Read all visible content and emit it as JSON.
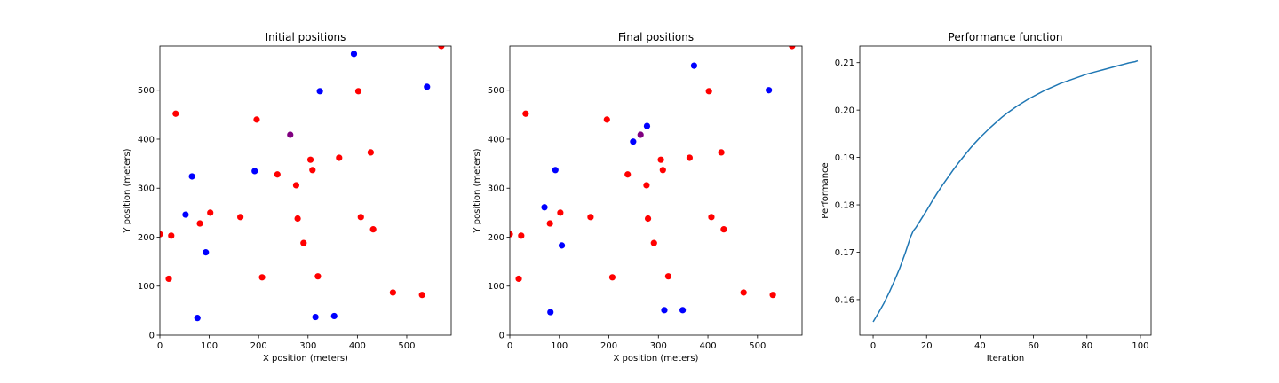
{
  "chart_data": [
    {
      "type": "scatter",
      "title": "Initial positions",
      "xlabel": "X position (meters)",
      "ylabel": "Y position (meters)",
      "xlim": [
        0,
        590
      ],
      "ylim": [
        0,
        590
      ],
      "xticks": [
        0,
        100,
        200,
        300,
        400,
        500
      ],
      "yticks": [
        0,
        100,
        200,
        300,
        400,
        500
      ],
      "grid": false,
      "series": [
        {
          "color": "#ff0000",
          "points": [
            [
              570,
              590
            ],
            [
              402,
              498
            ],
            [
              32,
              452
            ],
            [
              196,
              440
            ],
            [
              427,
              373
            ],
            [
              363,
              362
            ],
            [
              305,
              358
            ],
            [
              309,
              337
            ],
            [
              238,
              328
            ],
            [
              276,
              306
            ],
            [
              102,
              250
            ],
            [
              163,
              241
            ],
            [
              407,
              241
            ],
            [
              279,
              238
            ],
            [
              81,
              228
            ],
            [
              432,
              216
            ],
            [
              0,
              206
            ],
            [
              23,
              203
            ],
            [
              291,
              188
            ],
            [
              320,
              120
            ],
            [
              207,
              118
            ],
            [
              18,
              115
            ],
            [
              472,
              87
            ],
            [
              531,
              82
            ]
          ]
        },
        {
          "color": "#0000ff",
          "points": [
            [
              393,
              574
            ],
            [
              324,
              498
            ],
            [
              541,
              507
            ],
            [
              192,
              335
            ],
            [
              65,
              324
            ],
            [
              52,
              246
            ],
            [
              93,
              169
            ],
            [
              76,
              35
            ],
            [
              315,
              37
            ],
            [
              353,
              39
            ]
          ]
        },
        {
          "color": "#800080",
          "points": [
            [
              264,
              409
            ]
          ]
        }
      ]
    },
    {
      "type": "scatter",
      "title": "Final positions",
      "xlabel": "X position (meters)",
      "ylabel": "Y position (meters)",
      "xlim": [
        0,
        590
      ],
      "ylim": [
        0,
        590
      ],
      "xticks": [
        0,
        100,
        200,
        300,
        400,
        500
      ],
      "yticks": [
        0,
        100,
        200,
        300,
        400,
        500
      ],
      "grid": false,
      "series": [
        {
          "color": "#ff0000",
          "points": [
            [
              570,
              590
            ],
            [
              402,
              498
            ],
            [
              32,
              452
            ],
            [
              196,
              440
            ],
            [
              427,
              373
            ],
            [
              363,
              362
            ],
            [
              305,
              358
            ],
            [
              309,
              337
            ],
            [
              238,
              328
            ],
            [
              276,
              306
            ],
            [
              102,
              250
            ],
            [
              163,
              241
            ],
            [
              407,
              241
            ],
            [
              279,
              238
            ],
            [
              81,
              228
            ],
            [
              432,
              216
            ],
            [
              0,
              206
            ],
            [
              23,
              203
            ],
            [
              291,
              188
            ],
            [
              320,
              120
            ],
            [
              207,
              118
            ],
            [
              18,
              115
            ],
            [
              472,
              87
            ],
            [
              531,
              82
            ]
          ]
        },
        {
          "color": "#0000ff",
          "points": [
            [
              372,
              550
            ],
            [
              523,
              500
            ],
            [
              277,
              427
            ],
            [
              249,
              395
            ],
            [
              92,
              337
            ],
            [
              70,
              261
            ],
            [
              105,
              183
            ],
            [
              82,
              47
            ],
            [
              312,
              51
            ],
            [
              349,
              51
            ]
          ]
        },
        {
          "color": "#800080",
          "points": [
            [
              264,
              409
            ]
          ]
        }
      ]
    },
    {
      "type": "line",
      "title": "Performance function",
      "xlabel": "Iteration",
      "ylabel": "Performance",
      "xlim": [
        -5,
        104
      ],
      "ylim": [
        0.1525,
        0.2135
      ],
      "xticks": [
        0,
        20,
        40,
        60,
        80,
        100
      ],
      "yticks": [
        0.16,
        0.17,
        0.18,
        0.19,
        0.2,
        0.21
      ],
      "ytick_labels": [
        "0.16",
        "0.17",
        "0.18",
        "0.19",
        "0.20",
        "0.21"
      ],
      "grid": false,
      "series": [
        {
          "color": "#1f77b4",
          "x": [
            0,
            2,
            4,
            6,
            8,
            10,
            12,
            14,
            15,
            16,
            18,
            20,
            22,
            24,
            26,
            28,
            30,
            32,
            34,
            36,
            38,
            40,
            42,
            44,
            46,
            48,
            50,
            52,
            54,
            56,
            58,
            60,
            62,
            64,
            66,
            68,
            70,
            72,
            74,
            76,
            78,
            80,
            82,
            84,
            86,
            88,
            90,
            92,
            94,
            96,
            98,
            99
          ],
          "y": [
            0.1553,
            0.1572,
            0.1592,
            0.1615,
            0.164,
            0.1667,
            0.1698,
            0.1732,
            0.1745,
            0.1752,
            0.177,
            0.1788,
            0.1807,
            0.1825,
            0.1842,
            0.1858,
            0.1874,
            0.1889,
            0.1903,
            0.1917,
            0.193,
            0.1942,
            0.1953,
            0.1964,
            0.1974,
            0.1984,
            0.1993,
            0.2001,
            0.2009,
            0.2016,
            0.2023,
            0.2029,
            0.2035,
            0.2041,
            0.2046,
            0.2051,
            0.2056,
            0.206,
            0.2064,
            0.2068,
            0.2072,
            0.2076,
            0.2079,
            0.2082,
            0.2085,
            0.2088,
            0.2091,
            0.2094,
            0.2097,
            0.21,
            0.2102,
            0.2104
          ]
        }
      ]
    }
  ]
}
